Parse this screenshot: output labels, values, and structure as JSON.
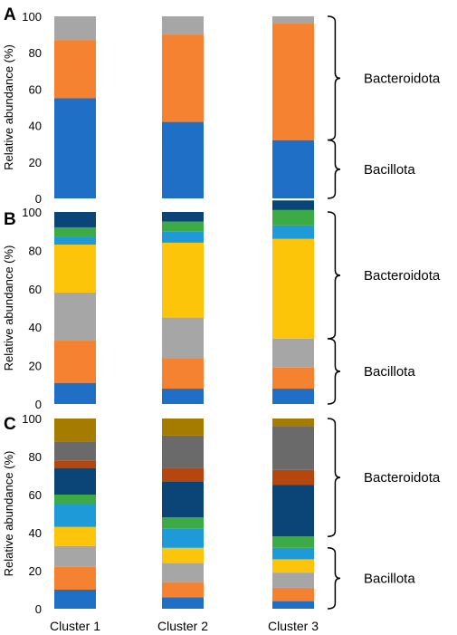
{
  "colors": {
    "blue": "#1f6fc6",
    "orange": "#f58230",
    "gray": "#a6a6a6",
    "yellow": "#fdc50a",
    "light_blue": "#1e9ad8",
    "green": "#3dab45",
    "navy": "#0b4577",
    "rust": "#b5470e",
    "dark_gray": "#6a6a6a",
    "brown": "#a67c00"
  },
  "chart_data": [
    {
      "panel": "A",
      "type": "bar",
      "stacked": true,
      "categories": [
        "Cluster 1",
        "Cluster 2",
        "Cluster 3"
      ],
      "ylabel": "Relative abundance (%)",
      "ylim": [
        0,
        100
      ],
      "yticks": [
        "0",
        "20",
        "40",
        "60",
        "80",
        "100"
      ],
      "series": [
        {
          "color": "blue",
          "values": [
            55,
            42,
            32
          ]
        },
        {
          "color": "orange",
          "values": [
            32,
            48,
            64
          ]
        },
        {
          "color": "gray",
          "values": [
            13,
            10,
            4
          ]
        }
      ],
      "annotations": [
        {
          "label": "Bacteroidota",
          "from": 32,
          "to": 100
        },
        {
          "label": "Bacillota",
          "from": 0,
          "to": 32
        }
      ]
    },
    {
      "panel": "B",
      "type": "bar",
      "stacked": true,
      "categories": [
        "Cluster 1",
        "Cluster 2",
        "Cluster 3"
      ],
      "ylabel": "Relative abundance (%)",
      "ylim": [
        0,
        100
      ],
      "yticks": [
        "0",
        "20",
        "40",
        "60",
        "80",
        "100"
      ],
      "series": [
        {
          "color": "blue",
          "values": [
            11,
            8,
            8
          ]
        },
        {
          "color": "orange",
          "values": [
            22,
            16,
            11
          ]
        },
        {
          "color": "gray",
          "values": [
            25,
            21,
            15
          ]
        },
        {
          "color": "yellow",
          "values": [
            25,
            39,
            52
          ]
        },
        {
          "color": "light_blue",
          "values": [
            4,
            6,
            7
          ]
        },
        {
          "color": "green",
          "values": [
            5,
            5,
            8
          ]
        },
        {
          "color": "navy",
          "values": [
            8,
            5,
            5
          ]
        }
      ],
      "annotations": [
        {
          "label": "Bacteroidota",
          "from": 34,
          "to": 100
        },
        {
          "label": "Bacillota",
          "from": 0,
          "to": 34
        }
      ]
    },
    {
      "panel": "C",
      "type": "bar",
      "stacked": true,
      "categories": [
        "Cluster 1",
        "Cluster 2",
        "Cluster 3"
      ],
      "ylabel": "Relative abundance (%)",
      "ylim": [
        0,
        100
      ],
      "yticks": [
        "0",
        "20",
        "40",
        "60",
        "80",
        "100"
      ],
      "series": [
        {
          "color": "blue",
          "values": [
            10,
            6,
            4
          ]
        },
        {
          "color": "orange",
          "values": [
            12,
            8,
            7
          ]
        },
        {
          "color": "gray",
          "values": [
            11,
            10,
            8
          ]
        },
        {
          "color": "yellow",
          "values": [
            10,
            8,
            7
          ]
        },
        {
          "color": "light_blue",
          "values": [
            12,
            10,
            6
          ]
        },
        {
          "color": "green",
          "values": [
            5,
            6,
            6
          ]
        },
        {
          "color": "navy",
          "values": [
            14,
            19,
            27
          ]
        },
        {
          "color": "rust",
          "values": [
            4,
            7,
            8
          ]
        },
        {
          "color": "dark_gray",
          "values": [
            10,
            17,
            23
          ]
        },
        {
          "color": "brown",
          "values": [
            12,
            9,
            4
          ]
        }
      ],
      "annotations": [
        {
          "label": "Bacteroidota",
          "from": 38,
          "to": 100
        },
        {
          "label": "Bacillota",
          "from": 0,
          "to": 32
        }
      ]
    }
  ]
}
